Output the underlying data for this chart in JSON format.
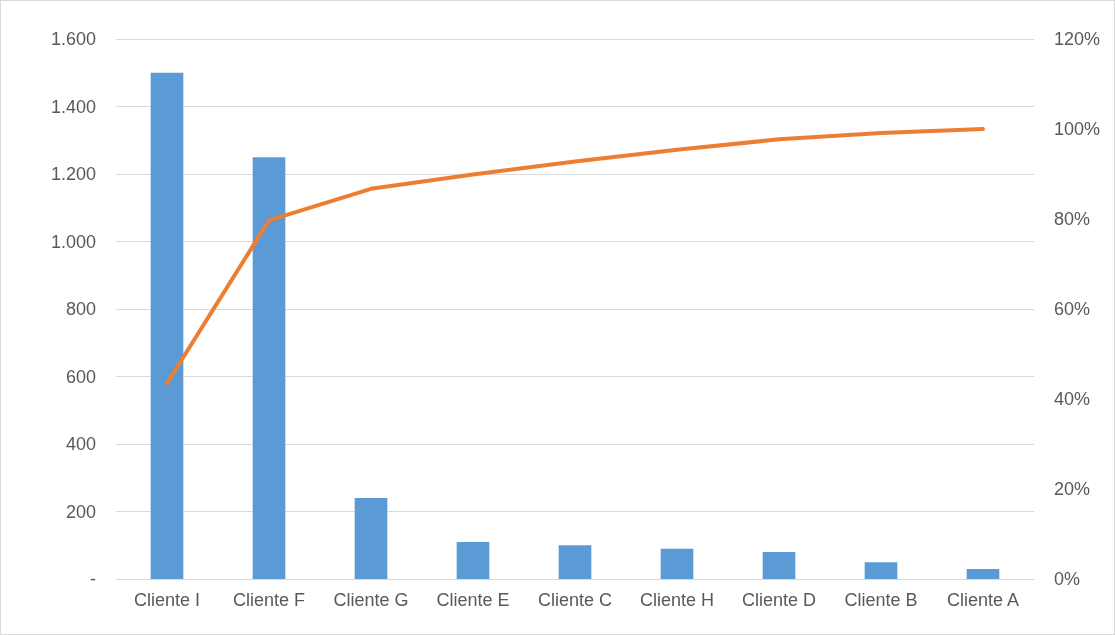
{
  "chart_data": {
    "type": "bar",
    "categories": [
      "Cliente I",
      "Cliente F",
      "Cliente G",
      "Cliente E",
      "Cliente C",
      "Cliente H",
      "Cliente D",
      "Cliente B",
      "Cliente A"
    ],
    "series": [
      {
        "color": "#5b9bd5",
        "values": [
          1500,
          1250,
          240,
          110,
          100,
          90,
          80,
          50,
          30
        ]
      },
      {
        "type": "line",
        "axis": "y2",
        "color": "#ed7d31",
        "values": [
          43.5,
          79.7,
          86.7,
          89.9,
          92.8,
          95.4,
          97.7,
          99.1,
          100
        ]
      }
    ],
    "ylim": [
      0,
      1600
    ],
    "yticks": [
      {
        "value": 0,
        "label": "-"
      },
      {
        "value": 200,
        "label": "200"
      },
      {
        "value": 400,
        "label": "400"
      },
      {
        "value": 600,
        "label": "600"
      },
      {
        "value": 800,
        "label": "800"
      },
      {
        "value": 1000,
        "label": "1.000"
      },
      {
        "value": 1200,
        "label": "1.200"
      },
      {
        "value": 1400,
        "label": "1.400"
      },
      {
        "value": 1600,
        "label": "1.600"
      }
    ],
    "y2lim": [
      0,
      120
    ],
    "y2ticks": [
      {
        "value": 0,
        "label": "0%"
      },
      {
        "value": 20,
        "label": "20%"
      },
      {
        "value": 40,
        "label": "40%"
      },
      {
        "value": 60,
        "label": "60%"
      },
      {
        "value": 80,
        "label": "80%"
      },
      {
        "value": 100,
        "label": "100%"
      },
      {
        "value": 120,
        "label": "120%"
      }
    ],
    "grid": "y",
    "marker": "none",
    "line_style": "solid"
  }
}
